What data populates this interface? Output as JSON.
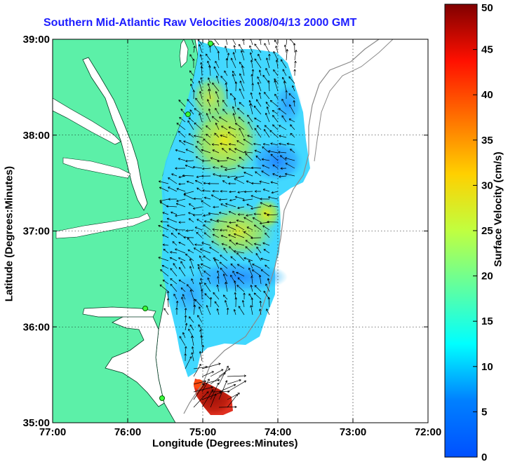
{
  "chart_data": {
    "type": "heatmap",
    "title": "Southern Mid-Atlantic Raw Velocities 2008/04/13 2000 GMT",
    "xlabel": "Longitude (Degrees:Minutes)",
    "ylabel": "Latitude (Degrees:Minutes)",
    "colorbar_label": "Surface Velocity (cm/s)",
    "x_ticks": [
      {
        "value": -77,
        "label": "77:00"
      },
      {
        "value": -76,
        "label": "76:00"
      },
      {
        "value": -75,
        "label": "75:00"
      },
      {
        "value": -74,
        "label": "74:00"
      },
      {
        "value": -73,
        "label": "73:00"
      },
      {
        "value": -72,
        "label": "72:00"
      }
    ],
    "y_ticks": [
      {
        "value": 35,
        "label": "35:00"
      },
      {
        "value": 36,
        "label": "36:00"
      },
      {
        "value": 37,
        "label": "37:00"
      },
      {
        "value": 38,
        "label": "38:00"
      },
      {
        "value": 39,
        "label": "39:00"
      }
    ],
    "xlim": [
      -77,
      -72
    ],
    "ylim": [
      35,
      39
    ],
    "colorbar": {
      "ticks": [
        0,
        5,
        10,
        15,
        20,
        25,
        30,
        35,
        40,
        45,
        50
      ],
      "range": [
        0,
        50
      ],
      "colormap": "jet"
    },
    "grid": true,
    "land_color": "#5cf0a8",
    "velocity_regions": [
      {
        "lon": -74.5,
        "lat": 38.2,
        "speed": 24
      },
      {
        "lon": -74.6,
        "lat": 37.6,
        "speed": 13
      },
      {
        "lon": -74.4,
        "lat": 37.0,
        "speed": 25
      },
      {
        "lon": -74.3,
        "lat": 36.6,
        "speed": 8
      },
      {
        "lon": -74.9,
        "lat": 36.3,
        "speed": 12
      },
      {
        "lon": -74.0,
        "lat": 37.8,
        "speed": 9
      },
      {
        "lon": -74.8,
        "lat": 35.2,
        "speed": 48
      }
    ]
  }
}
